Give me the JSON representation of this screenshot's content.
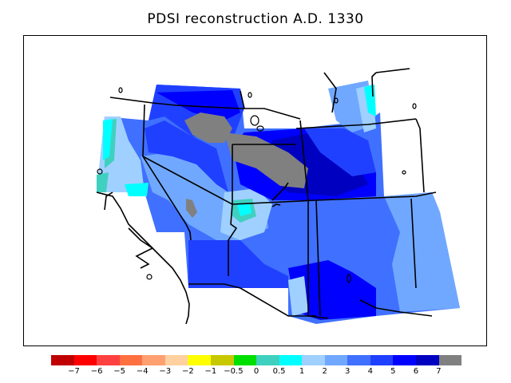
{
  "title": "PDSI reconstruction A.D. 1330",
  "legend": {
    "colors": [
      "#c00000",
      "#ff0000",
      "#ff4040",
      "#ff7040",
      "#ffa070",
      "#ffd0a0",
      "#ffff00",
      "#c8c800",
      "#00e000",
      "#40d0c0",
      "#00ffff",
      "#a0d0ff",
      "#70a8ff",
      "#4070ff",
      "#2040ff",
      "#0000ff",
      "#0000c0",
      "#808080"
    ],
    "labels": [
      "−7",
      "−6",
      "−5",
      "−4",
      "−3",
      "−2",
      "−1",
      "−0.5",
      "0",
      "0.5",
      "1",
      "2",
      "3",
      "4",
      "5",
      "6",
      "7"
    ]
  }
}
